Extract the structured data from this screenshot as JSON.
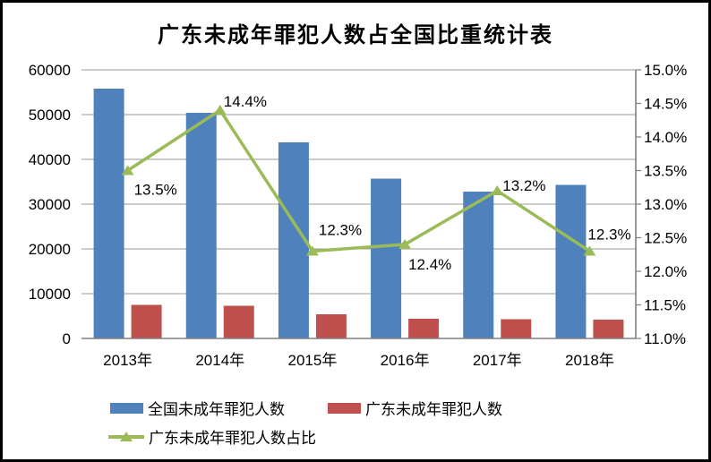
{
  "chart_data": {
    "type": "combo-bar-line",
    "title": "广东未成年罪犯人数占全国比重统计表",
    "categories": [
      "2013年",
      "2014年",
      "2015年",
      "2016年",
      "2017年",
      "2018年"
    ],
    "series": [
      {
        "name": "全国未成年罪犯人数",
        "kind": "bar",
        "axis": "left",
        "color": "#4F81BD",
        "values": [
          55800,
          50400,
          43800,
          35700,
          32800,
          34300
        ]
      },
      {
        "name": "广东未成年罪犯人数",
        "kind": "bar",
        "axis": "left",
        "color": "#C0504D",
        "values": [
          7500,
          7300,
          5400,
          4400,
          4300,
          4200
        ]
      },
      {
        "name": "广东未成年罪犯人数占比",
        "kind": "line",
        "axis": "right",
        "color": "#9BBB59",
        "values": [
          13.5,
          14.4,
          12.3,
          12.4,
          13.2,
          12.3
        ],
        "labels": [
          "13.5%",
          "14.4%",
          "12.3%",
          "12.4%",
          "13.2%",
          "12.3%"
        ]
      }
    ],
    "left_axis": {
      "min": 0,
      "max": 60000,
      "step": 10000,
      "ticks": [
        "0",
        "10000",
        "20000",
        "30000",
        "40000",
        "50000",
        "60000"
      ]
    },
    "right_axis": {
      "min": 11.0,
      "max": 15.0,
      "step": 0.5,
      "ticks": [
        "11.0%",
        "11.5%",
        "12.0%",
        "12.5%",
        "13.0%",
        "13.5%",
        "14.0%",
        "14.5%",
        "15.0%"
      ]
    },
    "grid": true,
    "legend_position": "bottom"
  },
  "colors": {
    "background": "#FFFFFF",
    "frame_border": "#000000",
    "gridline": "#9A9A9A",
    "axis_line": "#808080",
    "text": "#000000"
  }
}
